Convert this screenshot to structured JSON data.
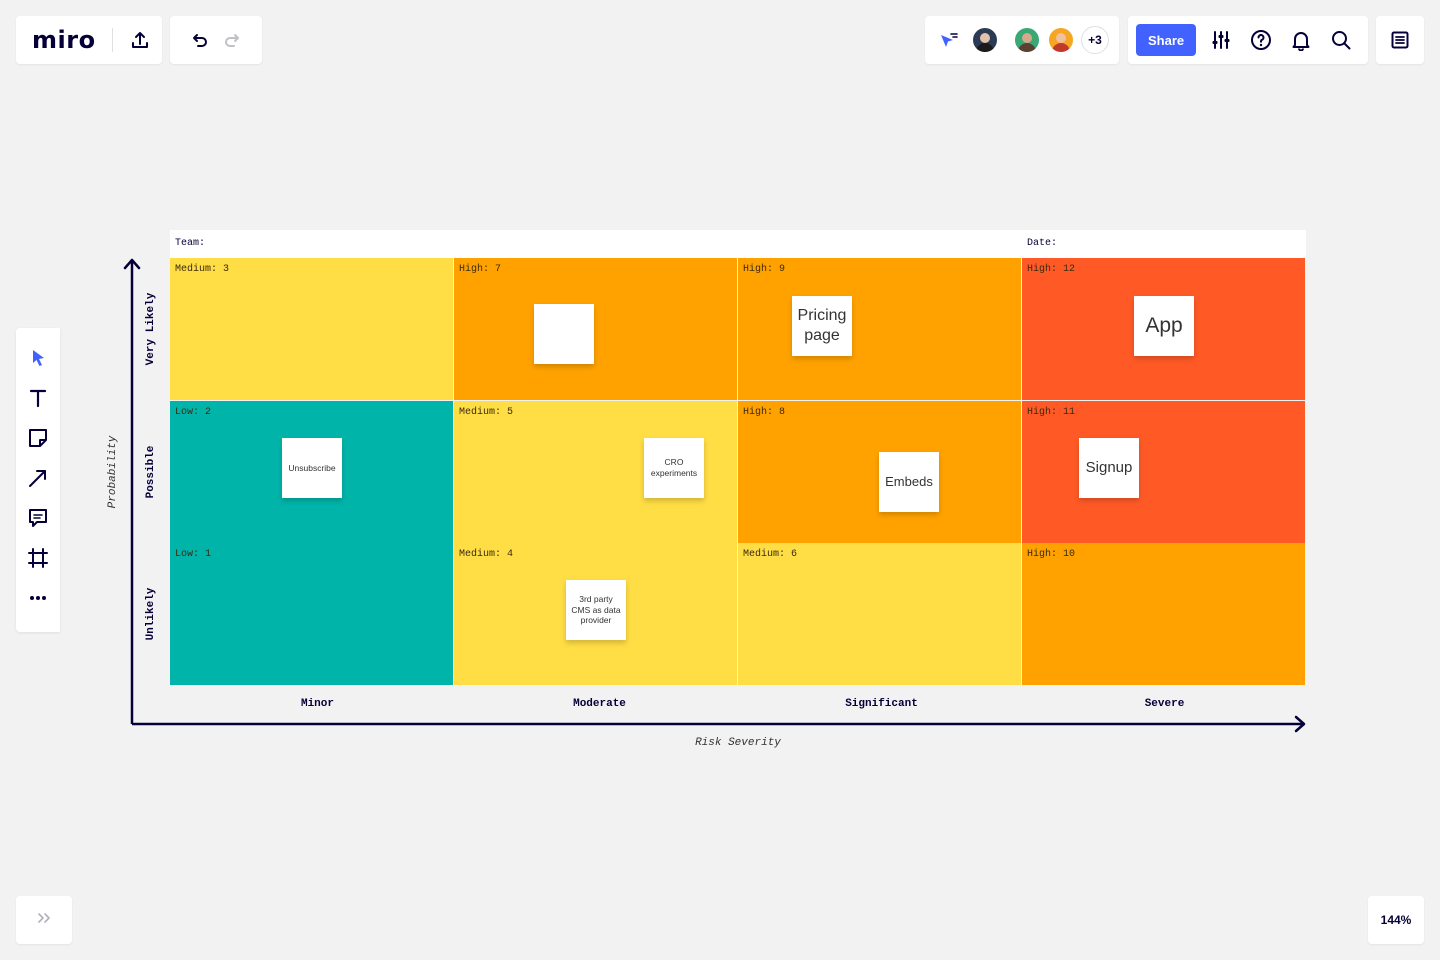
{
  "app": {
    "logo": "miro"
  },
  "toolbar": {
    "share_label": "Share",
    "more_collaborators": "+3"
  },
  "zoom": {
    "level": "144%"
  },
  "board": {
    "team_label": "Team:",
    "date_label": "Date:",
    "y_axis_title": "Probability",
    "x_axis_title": "Risk Severity",
    "rows": [
      "Very Likely",
      "Possible",
      "Unlikely"
    ],
    "columns": [
      "Minor",
      "Moderate",
      "Significant",
      "Severe"
    ],
    "cells": [
      [
        "Medium: 3",
        "High: 7",
        "High: 9",
        "High: 12"
      ],
      [
        "Low: 2",
        "Medium: 5",
        "High: 8",
        "High: 11"
      ],
      [
        "Low: 1",
        "Medium: 4",
        "Medium: 6",
        "High: 10"
      ]
    ],
    "stickies": {
      "empty": "",
      "pricing": "Pricing page",
      "app": "App",
      "unsubscribe": "Unsubscribe",
      "cro": "CRO experiments",
      "embeds": "Embeds",
      "signup": "Signup",
      "cms": "3rd party CMS as data provider"
    }
  },
  "colors": {
    "yellow": "#ffdd44",
    "orange": "#ffa200",
    "red": "#ff5a26",
    "teal": "#00b4a9",
    "accent": "#4262ff"
  }
}
